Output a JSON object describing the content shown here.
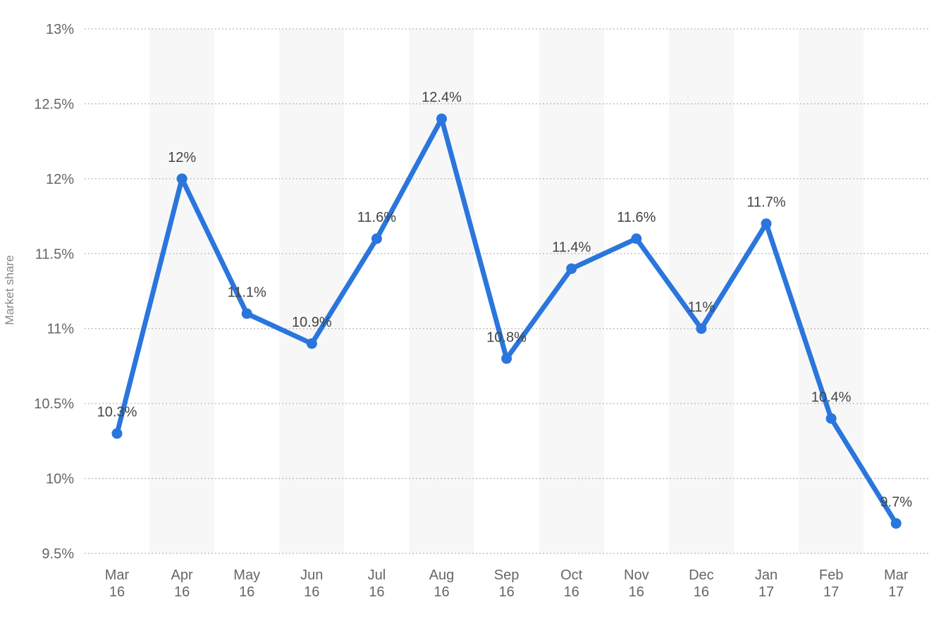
{
  "chart_data": {
    "type": "line",
    "title": "",
    "xlabel": "",
    "ylabel": "Market share",
    "ylim": [
      9.5,
      13
    ],
    "y_ticks": [
      {
        "value": 9.5,
        "label": "9.5%"
      },
      {
        "value": 10,
        "label": "10%"
      },
      {
        "value": 10.5,
        "label": "10.5%"
      },
      {
        "value": 11,
        "label": "11%"
      },
      {
        "value": 11.5,
        "label": "11.5%"
      },
      {
        "value": 12,
        "label": "12%"
      },
      {
        "value": 12.5,
        "label": "12.5%"
      },
      {
        "value": 13,
        "label": "13%"
      }
    ],
    "categories": [
      {
        "month": "Mar",
        "year": "16"
      },
      {
        "month": "Apr",
        "year": "16"
      },
      {
        "month": "May",
        "year": "16"
      },
      {
        "month": "Jun",
        "year": "16"
      },
      {
        "month": "Jul",
        "year": "16"
      },
      {
        "month": "Aug",
        "year": "16"
      },
      {
        "month": "Sep",
        "year": "16"
      },
      {
        "month": "Oct",
        "year": "16"
      },
      {
        "month": "Nov",
        "year": "16"
      },
      {
        "month": "Dec",
        "year": "16"
      },
      {
        "month": "Jan",
        "year": "17"
      },
      {
        "month": "Feb",
        "year": "17"
      },
      {
        "month": "Mar",
        "year": "17"
      }
    ],
    "series": [
      {
        "values": [
          10.3,
          12,
          11.1,
          10.9,
          11.6,
          12.4,
          10.8,
          11.4,
          11.6,
          11,
          11.7,
          10.4,
          9.7
        ],
        "labels": [
          "10.3%",
          "12%",
          "11.1%",
          "10.9%",
          "11.6%",
          "12.4%",
          "10.8%",
          "11.4%",
          "11.6%",
          "11%",
          "11.7%",
          "10.4%",
          "9.7%"
        ],
        "color": "#2a76dd"
      }
    ],
    "grid": true,
    "legend": "none",
    "band_color": "#f7f7f7",
    "grid_color": "#b8b8b8"
  }
}
